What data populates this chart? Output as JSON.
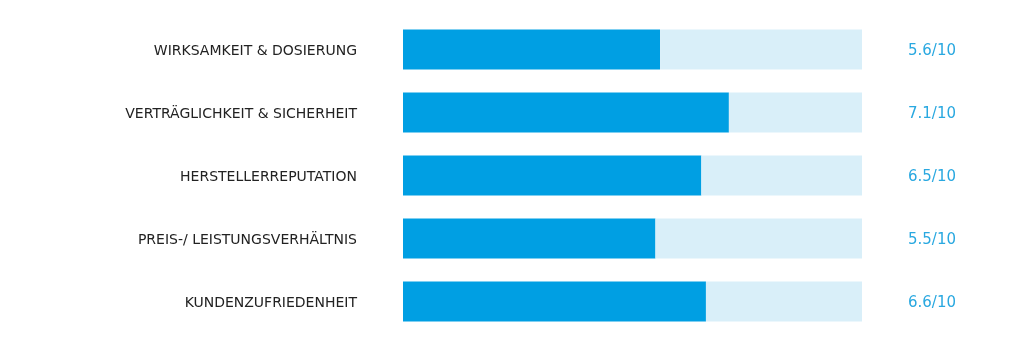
{
  "chart_data": {
    "type": "bar",
    "orientation": "horizontal",
    "stacked": true,
    "categories": [
      "WIRKSAMKEIT & DOSIERUNG",
      "VERTRÄGLICHKEIT & SICHERHEIT",
      "HERSTELLERREPUTATION",
      "PREIS-/ LEISTUNGSVERHÄLTNIS",
      "KUNDENZUFRIEDENHEIT"
    ],
    "series": [
      {
        "color": "#009fe3",
        "values": [
          5.6,
          7.1,
          6.5,
          5.5,
          6.6
        ],
        "value_labels": [
          "5.6",
          "7.1",
          "6.5",
          "5.5",
          "6.6"
        ]
      },
      {
        "color": "#d9eff9",
        "values": [
          4.4,
          2.9,
          3.5,
          4.5,
          3.4
        ]
      }
    ],
    "annotations": [
      "/10",
      "/10",
      "/10",
      "/10",
      "/10"
    ],
    "xlim": [
      0,
      10
    ],
    "tick_labels": "y"
  }
}
